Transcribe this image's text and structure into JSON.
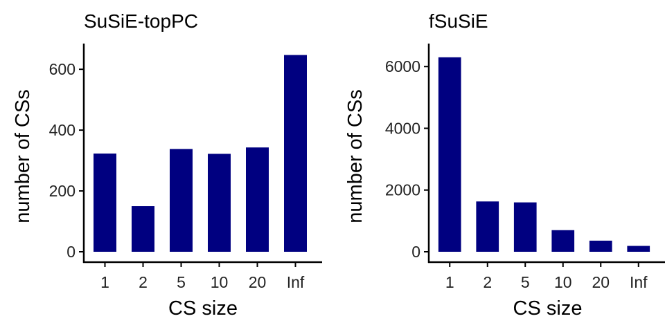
{
  "chart_data": [
    {
      "type": "bar",
      "title": "SuSiE-topPC",
      "xlabel": "CS size",
      "ylabel": "number of CSs",
      "categories": [
        "1",
        "2",
        "5",
        "10",
        "20",
        "Inf"
      ],
      "values": [
        323,
        150,
        338,
        322,
        343,
        647
      ],
      "ylim": [
        0,
        680
      ],
      "yticks": [
        0,
        200,
        400,
        600
      ],
      "bar_color": "#000080",
      "grid": false
    },
    {
      "type": "bar",
      "title": "fSuSiE",
      "xlabel": "CS size",
      "ylabel": "number of CSs",
      "categories": [
        "1",
        "2",
        "5",
        "10",
        "20",
        "Inf"
      ],
      "values": [
        6300,
        1630,
        1600,
        700,
        360,
        190
      ],
      "ylim": [
        0,
        6700
      ],
      "yticks": [
        0,
        2000,
        4000,
        6000
      ],
      "bar_color": "#000080",
      "grid": false
    }
  ]
}
